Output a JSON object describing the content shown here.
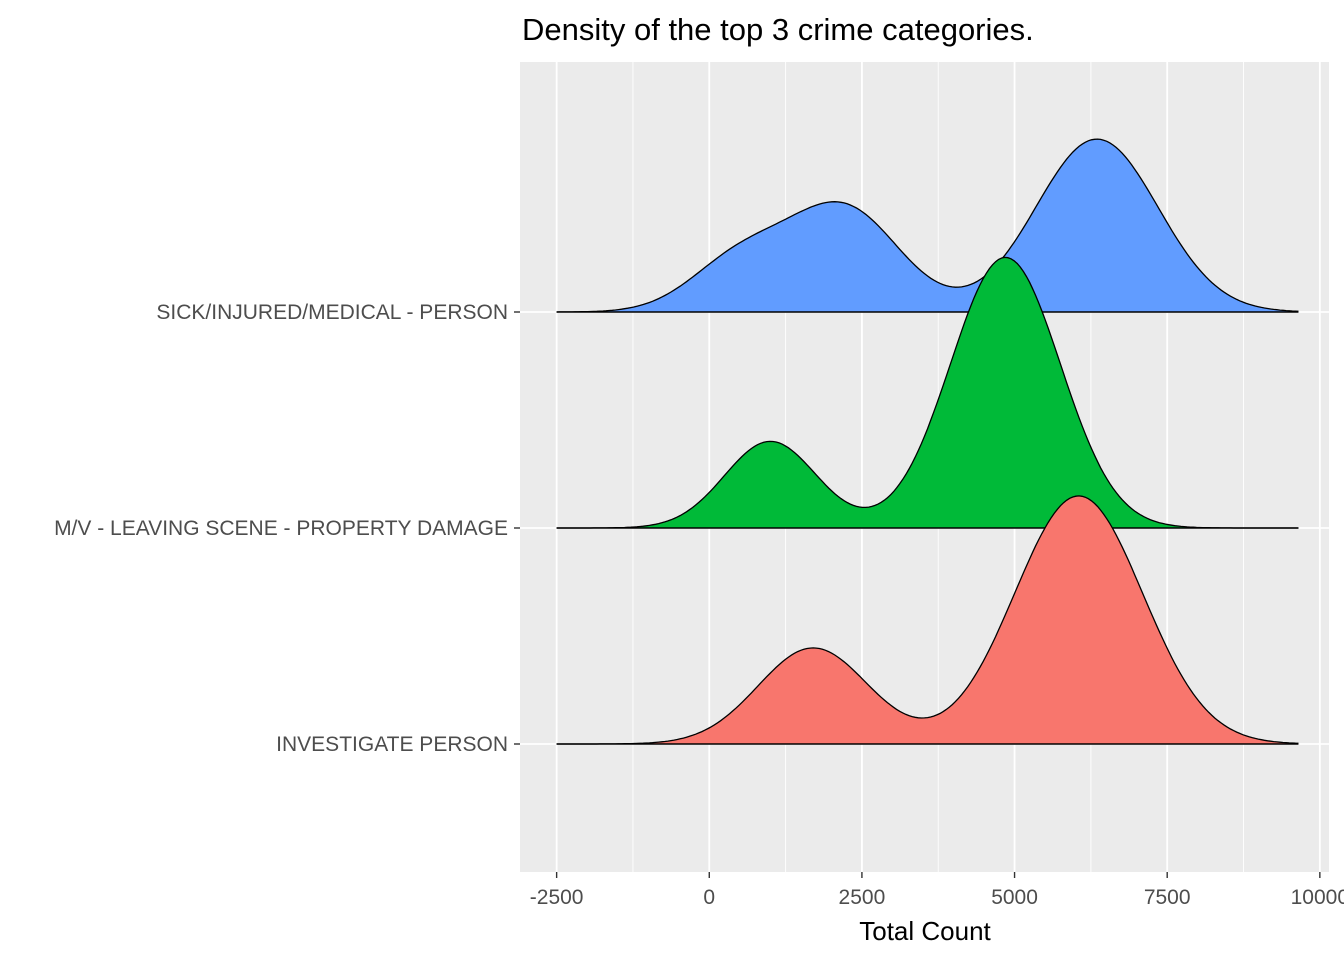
{
  "chart_data": {
    "type": "ridgeline",
    "title": "Density of the top 3 crime categories.",
    "xlabel": "Total Count",
    "ylabel": "",
    "xlim": [
      -3100,
      10150
    ],
    "xticks": [
      -2500,
      0,
      2500,
      5000,
      7500,
      10000
    ],
    "xtick_labels": [
      "-2500",
      "0",
      "2500",
      "5000",
      "7500",
      "10000"
    ],
    "x_range": [
      -2500,
      9650
    ],
    "categories": [
      "INVESTIGATE PERSON",
      "M/V - LEAVING SCENE - PROPERTY DAMAGE",
      "SICK/INJURED/MEDICAL - PERSON"
    ],
    "grid": true,
    "legend": "none",
    "series": [
      {
        "category": "INVESTIGATE PERSON",
        "color": "#F8766D",
        "height_scale": 1.65,
        "peaks": [
          {
            "mean": 1700,
            "sd": 900,
            "weight": 0.36
          },
          {
            "mean": 6050,
            "sd": 1050,
            "weight": 0.93
          }
        ]
      },
      {
        "category": "M/V - LEAVING SCENE - PROPERTY DAMAGE",
        "color": "#00BA38",
        "height_scale": 1.8,
        "peaks": [
          {
            "mean": 1000,
            "sd": 750,
            "weight": 0.32
          },
          {
            "mean": 4850,
            "sd": 900,
            "weight": 1.0
          }
        ]
      },
      {
        "category": "SICK/INJURED/MEDICAL - PERSON",
        "color": "#619CFF",
        "height_scale": 1.15,
        "peaks": [
          {
            "mean": 500,
            "sd": 800,
            "weight": 0.3
          },
          {
            "mean": 2200,
            "sd": 900,
            "weight": 0.6
          },
          {
            "mean": 6350,
            "sd": 1000,
            "weight": 1.0
          }
        ]
      }
    ]
  }
}
